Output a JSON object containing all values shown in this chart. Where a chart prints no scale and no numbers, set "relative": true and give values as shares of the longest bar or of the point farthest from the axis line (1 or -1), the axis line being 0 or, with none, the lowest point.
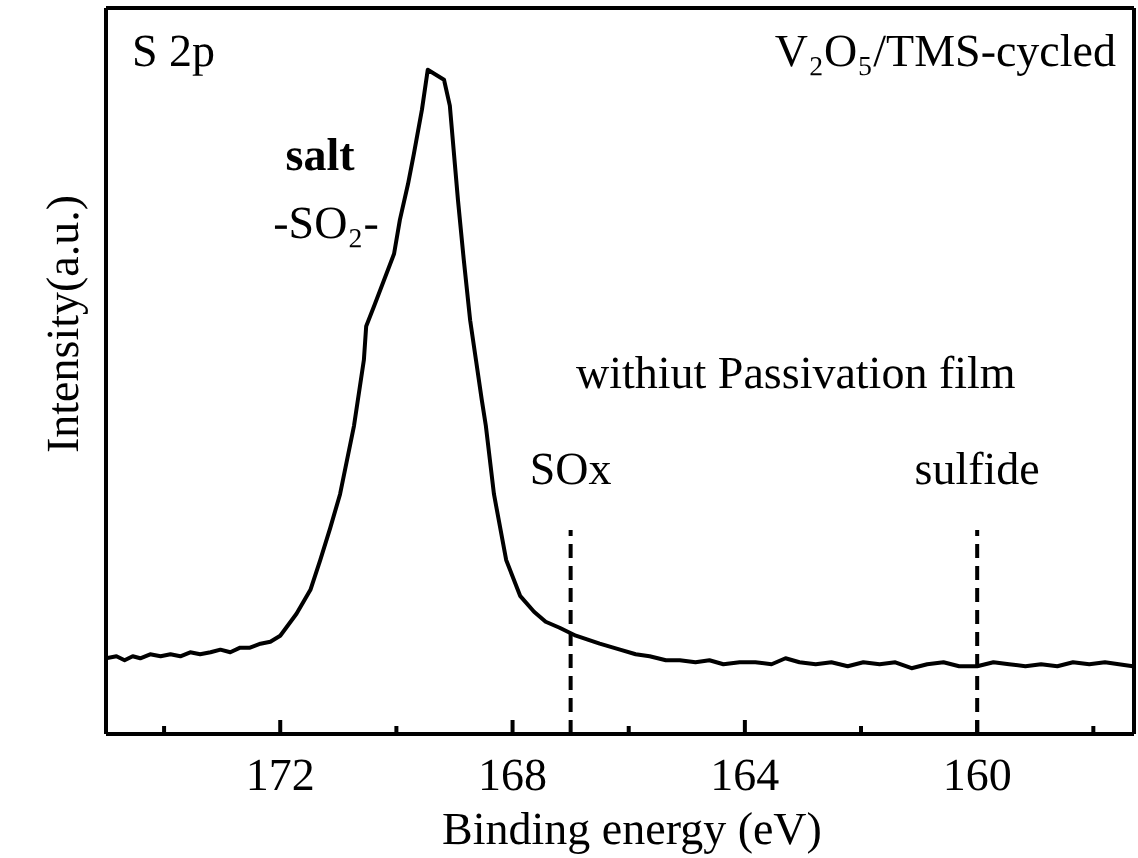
{
  "chart_data": {
    "type": "line",
    "xlabel": "Binding energy (eV)",
    "ylabel": "Intensity(a.u.)",
    "relative": true,
    "color": "#000000",
    "x": [
      175.0,
      174.82,
      174.68,
      174.54,
      174.41,
      174.24,
      174.06,
      173.89,
      173.72,
      173.55,
      173.38,
      173.2,
      173.03,
      172.86,
      172.69,
      172.52,
      172.34,
      172.17,
      172.0,
      171.72,
      171.48,
      171.31,
      171.14,
      170.97,
      170.73,
      170.56,
      170.52,
      170.38,
      170.04,
      169.94,
      169.8,
      169.7,
      169.56,
      169.46,
      169.18,
      169.08,
      168.94,
      168.84,
      168.73,
      168.63,
      168.53,
      168.46,
      168.32,
      168.11,
      167.87,
      167.63,
      167.43,
      167.19,
      166.91,
      166.5,
      166.15,
      165.88,
      165.64,
      165.36,
      165.12,
      164.85,
      164.61,
      164.37,
      164.09,
      163.82,
      163.54,
      163.3,
      163.06,
      162.78,
      162.51,
      162.23,
      161.96,
      161.68,
      161.41,
      161.13,
      160.86,
      160.58,
      160.31,
      160.0,
      159.72,
      159.45,
      159.17,
      158.9,
      158.62,
      158.35,
      158.07,
      157.8,
      157.56,
      157.32
    ],
    "values": [
      0.114,
      0.117,
      0.111,
      0.117,
      0.114,
      0.12,
      0.117,
      0.12,
      0.117,
      0.123,
      0.12,
      0.123,
      0.127,
      0.123,
      0.13,
      0.13,
      0.136,
      0.139,
      0.148,
      0.181,
      0.217,
      0.262,
      0.31,
      0.361,
      0.464,
      0.563,
      0.614,
      0.645,
      0.723,
      0.774,
      0.828,
      0.873,
      0.94,
      1.0,
      0.985,
      0.946,
      0.804,
      0.714,
      0.623,
      0.563,
      0.503,
      0.464,
      0.361,
      0.262,
      0.208,
      0.184,
      0.169,
      0.16,
      0.148,
      0.136,
      0.127,
      0.12,
      0.117,
      0.111,
      0.111,
      0.108,
      0.111,
      0.105,
      0.108,
      0.108,
      0.105,
      0.114,
      0.108,
      0.105,
      0.108,
      0.102,
      0.108,
      0.105,
      0.108,
      0.099,
      0.105,
      0.108,
      0.102,
      0.102,
      0.108,
      0.105,
      0.102,
      0.105,
      0.102,
      0.108,
      0.105,
      0.108,
      0.105,
      0.102
    ],
    "xlim": [
      175,
      157.3
    ],
    "xticks": [
      {
        "value": 174,
        "label": null
      },
      172,
      {
        "value": 170,
        "label": null
      },
      168,
      {
        "value": 166,
        "label": null
      },
      164,
      {
        "value": 162,
        "label": null
      },
      160,
      {
        "value": 158,
        "label": null
      }
    ],
    "ref_lines": [
      {
        "axis": "x",
        "value": 167,
        "label": "SOx",
        "color": "#000000",
        "line_style": "dashed"
      },
      {
        "axis": "x",
        "value": 160,
        "label": "sulfide",
        "color": "#000000",
        "line_style": "dashed"
      }
    ],
    "annotations": [
      "S 2p",
      "V₂O₅/TMS-cycled",
      "salt",
      "-SO₂-",
      "withiut Passivation film"
    ]
  }
}
